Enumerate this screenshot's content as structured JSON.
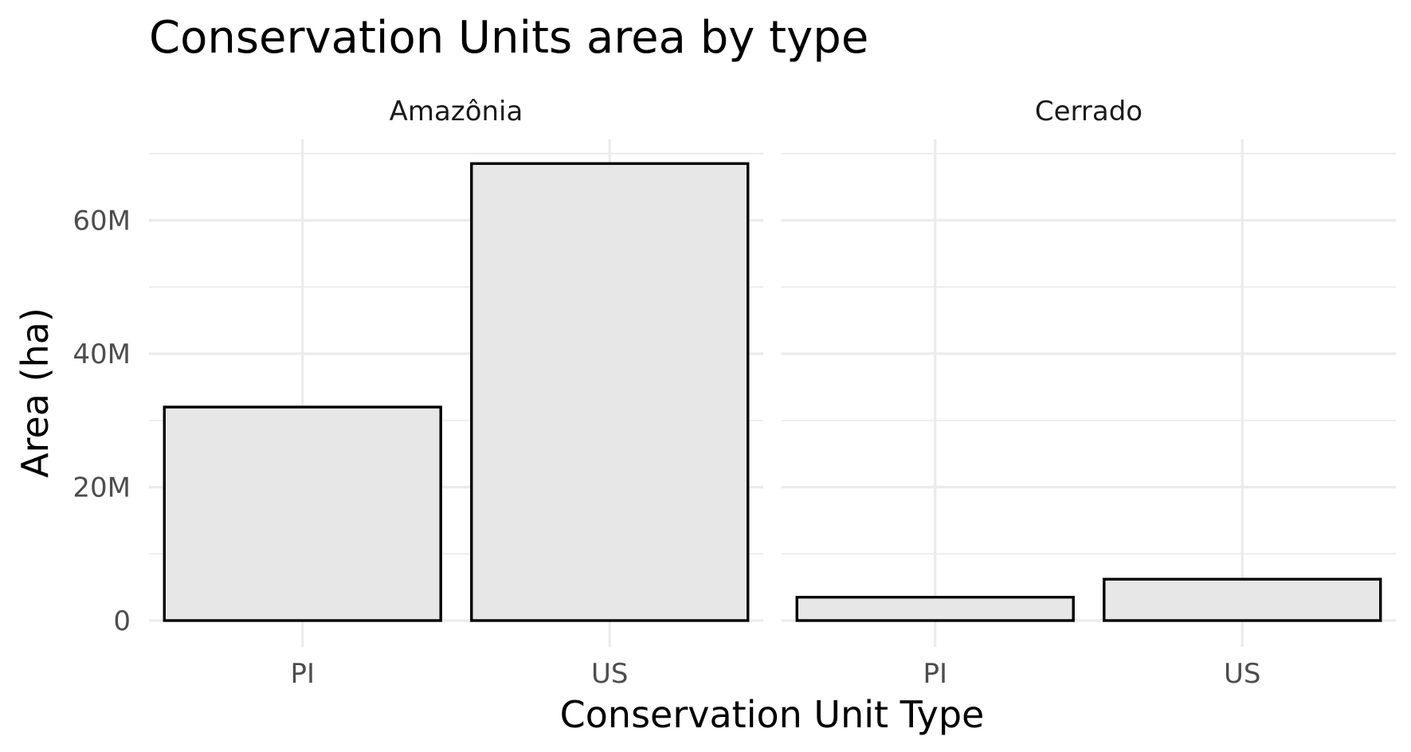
{
  "chart_data": {
    "type": "bar",
    "title": "Conservation Units area by type",
    "xlabel": "Conservation Unit Type",
    "ylabel": "Area (ha)",
    "ylim": [
      0,
      72000000
    ],
    "yticks": [
      {
        "value": 0,
        "label": "0"
      },
      {
        "value": 20000000,
        "label": "20M"
      },
      {
        "value": 40000000,
        "label": "40M"
      },
      {
        "value": 60000000,
        "label": "60M"
      }
    ],
    "categories": [
      "PI",
      "US"
    ],
    "facets": [
      {
        "name": "Amazônia",
        "values": [
          32000000,
          68500000
        ]
      },
      {
        "name": "Cerrado",
        "values": [
          3500000,
          6200000
        ]
      }
    ],
    "grid": true,
    "legend": "none",
    "colors": {
      "bar_fill": "#e7e7e7",
      "bar_stroke": "#000000",
      "grid": "#ebebeb"
    }
  }
}
